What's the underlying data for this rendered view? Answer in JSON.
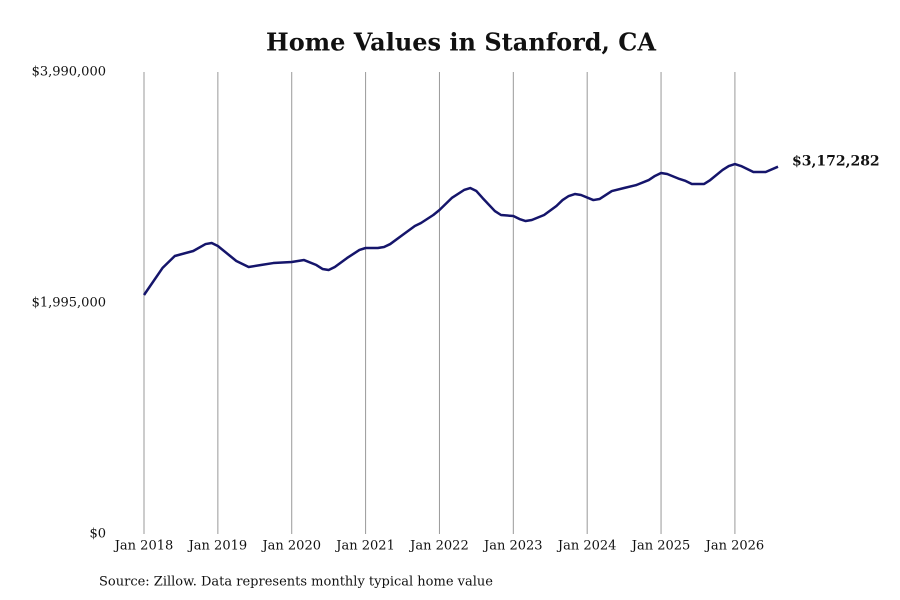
{
  "chart_data": {
    "type": "line",
    "title": "Home Values in Stanford, CA",
    "source": "Source: Zillow. Data represents monthly typical home value",
    "x": [
      "2018-01",
      "2018-04",
      "2018-06",
      "2018-09",
      "2018-11",
      "2018-12",
      "2019-01",
      "2019-03",
      "2019-04",
      "2019-06",
      "2019-08",
      "2019-10",
      "2020-01",
      "2020-03",
      "2020-05",
      "2020-06",
      "2020-07",
      "2020-08",
      "2020-10",
      "2020-12",
      "2021-01",
      "2021-03",
      "2021-04",
      "2021-05",
      "2021-07",
      "2021-09",
      "2021-10",
      "2021-12",
      "2022-01",
      "2022-03",
      "2022-05",
      "2022-06",
      "2022-07",
      "2022-08",
      "2022-10",
      "2022-11",
      "2023-01",
      "2023-02",
      "2023-03",
      "2023-04",
      "2023-06",
      "2023-08",
      "2023-09",
      "2023-10",
      "2023-11",
      "2023-12",
      "2024-02",
      "2024-03",
      "2024-05",
      "2024-07",
      "2024-09",
      "2024-11",
      "2024-12",
      "2025-01",
      "2025-02",
      "2025-04",
      "2025-05",
      "2025-06",
      "2025-08",
      "2025-09",
      "2025-11",
      "2025-12",
      "2026-01",
      "2026-02",
      "2026-04",
      "2026-06",
      "2026-08"
    ],
    "series": [
      {
        "name": "Home Value",
        "color": "#15156b",
        "values": [
          2064000,
          2297000,
          2401000,
          2444000,
          2504000,
          2513000,
          2487000,
          2401000,
          2358000,
          2306000,
          2323000,
          2340000,
          2349000,
          2366000,
          2323000,
          2289000,
          2280000,
          2306000,
          2384000,
          2453000,
          2470000,
          2470000,
          2479000,
          2504000,
          2582000,
          2660000,
          2686000,
          2755000,
          2798000,
          2902000,
          2971000,
          2988000,
          2962000,
          2902000,
          2789000,
          2755000,
          2746000,
          2720000,
          2703000,
          2712000,
          2755000,
          2833000,
          2884000,
          2919000,
          2936000,
          2928000,
          2884000,
          2893000,
          2962000,
          2988000,
          3014000,
          3057000,
          3092000,
          3118000,
          3109000,
          3066000,
          3049000,
          3023000,
          3023000,
          3057000,
          3144000,
          3178000,
          3195000,
          3178000,
          3126000,
          3126000,
          3172282
        ],
        "value_labels": [
          null,
          null,
          null,
          null,
          null,
          null,
          null,
          null,
          null,
          null,
          null,
          null,
          null,
          null,
          null,
          null,
          null,
          null,
          null,
          null,
          null,
          null,
          null,
          null,
          null,
          null,
          null,
          null,
          null,
          null,
          null,
          null,
          null,
          null,
          null,
          null,
          null,
          null,
          null,
          null,
          null,
          null,
          null,
          null,
          null,
          null,
          null,
          null,
          null,
          null,
          null,
          null,
          null,
          null,
          null,
          null,
          null,
          null,
          null,
          null,
          null,
          null,
          null,
          null,
          null,
          null,
          "$3,172,282"
        ]
      }
    ],
    "xlim": [
      "2018-01",
      "2026-08"
    ],
    "xticks": [
      {
        "value": "2018-01",
        "label": "Jan 2018"
      },
      {
        "value": "2019-01",
        "label": "Jan 2019"
      },
      {
        "value": "2020-01",
        "label": "Jan 2020"
      },
      {
        "value": "2021-01",
        "label": "Jan 2021"
      },
      {
        "value": "2022-01",
        "label": "Jan 2022"
      },
      {
        "value": "2023-01",
        "label": "Jan 2023"
      },
      {
        "value": "2024-01",
        "label": "Jan 2024"
      },
      {
        "value": "2025-01",
        "label": "Jan 2025"
      },
      {
        "value": "2026-01",
        "label": "Jan 2026"
      }
    ],
    "ylim": [
      0,
      3990000
    ],
    "yticks": [
      {
        "value": 0,
        "label": "$0"
      },
      {
        "value": 1995000,
        "label": "$1,995,000"
      },
      {
        "value": 3990000,
        "label": "$3,990,000"
      }
    ],
    "grid": "x"
  }
}
